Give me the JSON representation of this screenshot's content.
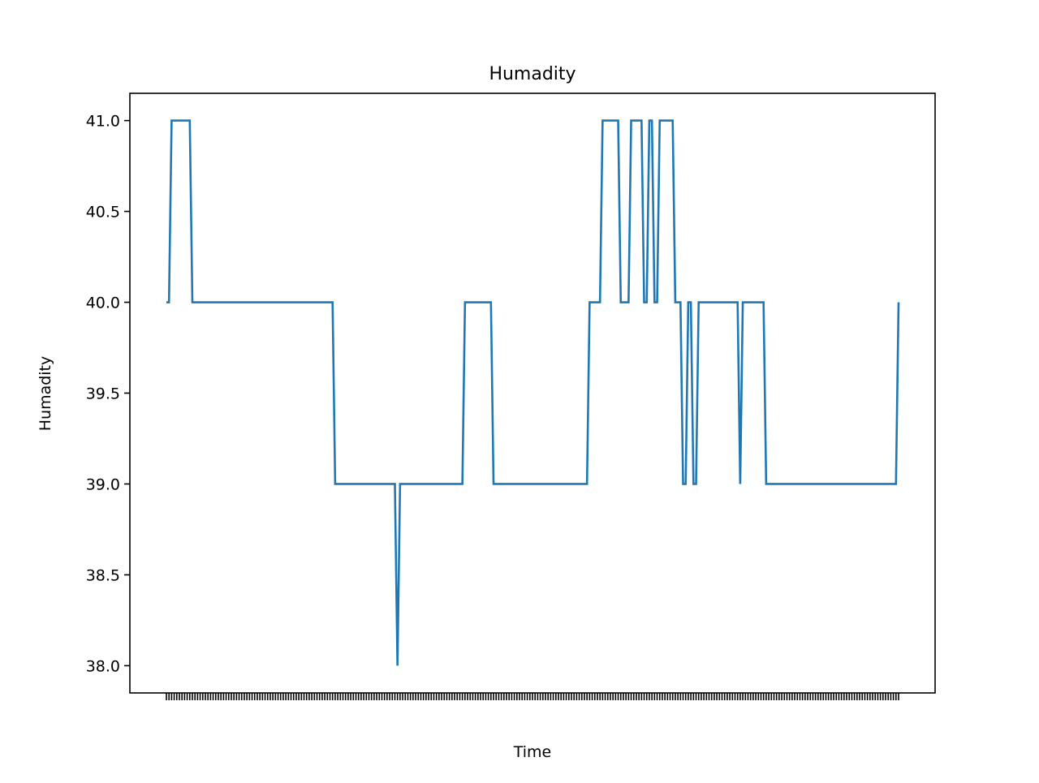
{
  "chart_data": {
    "type": "line",
    "title": "Humadity",
    "xlabel": "Time",
    "ylabel": "Humadity",
    "ylim": [
      37.85,
      41.15
    ],
    "y_ticks": [
      38.0,
      38.5,
      39.0,
      39.5,
      40.0,
      40.5,
      41.0
    ],
    "y_tick_labels": [
      "38.0",
      "38.5",
      "39.0",
      "39.5",
      "40.0",
      "40.5",
      "41.0"
    ],
    "x_tick_labels_visible": false,
    "grid": false,
    "series": [
      {
        "color": "#1f77b4",
        "values": [
          40,
          40,
          41,
          41,
          41,
          41,
          41,
          41,
          41,
          41,
          40,
          40,
          40,
          40,
          40,
          40,
          40,
          40,
          40,
          40,
          40,
          40,
          40,
          40,
          40,
          40,
          40,
          40,
          40,
          40,
          40,
          40,
          40,
          40,
          40,
          40,
          40,
          40,
          40,
          40,
          40,
          40,
          40,
          40,
          40,
          40,
          40,
          40,
          40,
          40,
          40,
          40,
          40,
          40,
          40,
          40,
          40,
          40,
          40,
          40,
          40,
          40,
          40,
          40,
          40,
          39,
          39,
          39,
          39,
          39,
          39,
          39,
          39,
          39,
          39,
          39,
          39,
          39,
          39,
          39,
          39,
          39,
          39,
          39,
          39,
          39,
          39,
          39,
          39,
          38,
          39,
          39,
          39,
          39,
          39,
          39,
          39,
          39,
          39,
          39,
          39,
          39,
          39,
          39,
          39,
          39,
          39,
          39,
          39,
          39,
          39,
          39,
          39,
          39,
          39,
          40,
          40,
          40,
          40,
          40,
          40,
          40,
          40,
          40,
          40,
          40,
          39,
          39,
          39,
          39,
          39,
          39,
          39,
          39,
          39,
          39,
          39,
          39,
          39,
          39,
          39,
          39,
          39,
          39,
          39,
          39,
          39,
          39,
          39,
          39,
          39,
          39,
          39,
          39,
          39,
          39,
          39,
          39,
          39,
          39,
          39,
          39,
          39,
          40,
          40,
          40,
          40,
          40,
          41,
          41,
          41,
          41,
          41,
          41,
          41,
          40,
          40,
          40,
          40,
          41,
          41,
          41,
          41,
          41,
          40,
          40,
          41,
          41,
          40,
          40,
          41,
          41,
          41,
          41,
          41,
          41,
          40,
          40,
          40,
          39,
          39,
          40,
          40,
          39,
          39,
          40,
          40,
          40,
          40,
          40,
          40,
          40,
          40,
          40,
          40,
          40,
          40,
          40,
          40,
          40,
          40,
          39,
          40,
          40,
          40,
          40,
          40,
          40,
          40,
          40,
          40,
          39,
          39,
          39,
          39,
          39,
          39,
          39,
          39,
          39,
          39,
          39,
          39,
          39,
          39,
          39,
          39,
          39,
          39,
          39,
          39,
          39,
          39,
          39,
          39,
          39,
          39,
          39,
          39,
          39,
          39,
          39,
          39,
          39,
          39,
          39,
          39,
          39,
          39,
          39,
          39,
          39,
          39,
          39,
          39,
          39,
          39,
          39,
          39,
          39,
          39,
          39,
          40
        ]
      }
    ]
  }
}
